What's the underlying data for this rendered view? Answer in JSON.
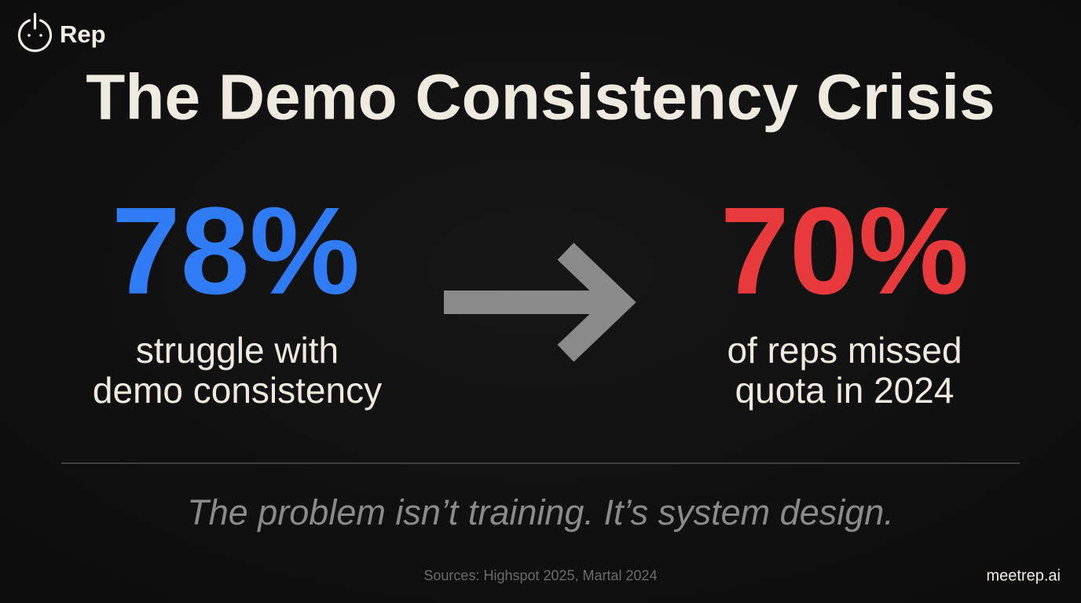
{
  "brand": {
    "name": "Rep"
  },
  "title": "The Demo Consistency Crisis",
  "stats": [
    {
      "figure": "78%",
      "lines": [
        "struggle with",
        "demo consistency"
      ]
    },
    {
      "figure": "70%",
      "lines": [
        "of reps missed",
        "quota in 2024"
      ]
    }
  ],
  "tagline": "The problem isn’t training. It’s system design.",
  "footer": {
    "sources": "Sources: Highspot 2025, Martal 2024",
    "url": "meetrep.ai"
  }
}
